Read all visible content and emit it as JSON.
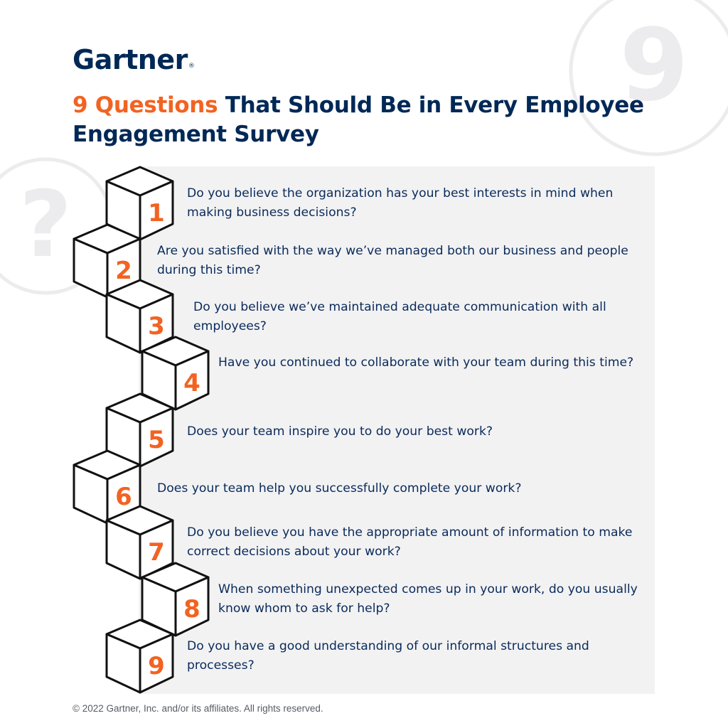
{
  "brand": {
    "logo_text": "Gartner",
    "registered_mark": "®"
  },
  "headline": {
    "highlight": "9 Questions",
    "rest": " That Should Be in Every Employee Engagement Survey"
  },
  "decorations": {
    "corner_glyph": "9",
    "side_glyph": "?"
  },
  "questions": [
    {
      "number": "1",
      "text": "Do you believe the organization has your best interests in mind when making business decisions?"
    },
    {
      "number": "2",
      "text": "Are you satisfied with the way we’ve managed both our business and people during this time?"
    },
    {
      "number": "3",
      "text": "Do you believe we’ve maintained adequate communication with all employees?"
    },
    {
      "number": "4",
      "text": "Have you continued to collaborate with your team during this time?"
    },
    {
      "number": "5",
      "text": "Does your team inspire you to do your best work?"
    },
    {
      "number": "6",
      "text": "Does your team help you successfully complete your work?"
    },
    {
      "number": "7",
      "text": "Do you believe you have the appropriate amount of information to make correct decisions about your work?"
    },
    {
      "number": "8",
      "text": "When something unexpected comes up in your work, do you usually know whom to ask for help?"
    },
    {
      "number": "9",
      "text": "Do you have a good understanding of our informal structures and processes?"
    }
  ],
  "footer": {
    "copyright": "© 2022 Gartner, Inc. and/or its affiliates. All rights reserved."
  },
  "colors": {
    "navy": "#002856",
    "orange": "#f26322",
    "panel": "#f2f2f3",
    "decoration": "#ececee"
  }
}
